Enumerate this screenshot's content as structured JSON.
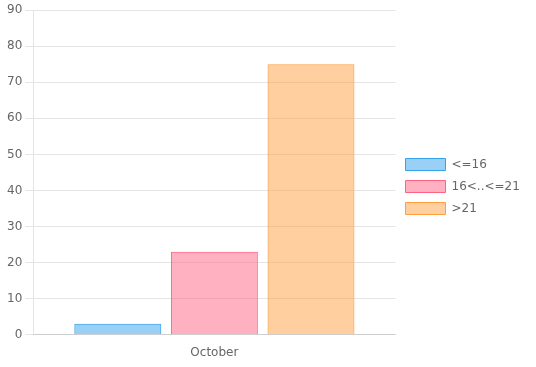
{
  "chart_data": {
    "type": "bar",
    "categories": [
      "October"
    ],
    "series": [
      {
        "name": "<=16",
        "values": [
          3
        ]
      },
      {
        "name": "16<..<=21",
        "values": [
          23
        ]
      },
      {
        "name": ">21",
        "values": [
          75
        ]
      }
    ],
    "ylim": [
      0,
      90
    ],
    "yticks": [
      0,
      10,
      20,
      30,
      40,
      50,
      60,
      70,
      80,
      90
    ],
    "grid": true,
    "legend": "right"
  }
}
